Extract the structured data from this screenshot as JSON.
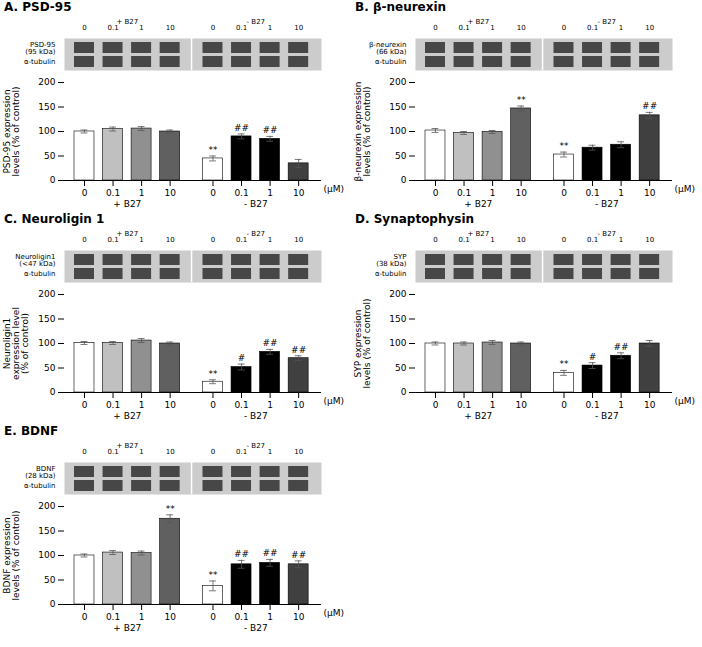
{
  "chart_data": [
    {
      "type": "bar",
      "title": "A. PSD-95",
      "y_label": "PSD-95 expression\nlevels (% of control)",
      "x_label": "(μM)",
      "categories": [
        "0",
        "0.1",
        "1",
        "10"
      ],
      "series": [
        {
          "name": "+ B27",
          "values": [
            100,
            105,
            106,
            100
          ],
          "errors": [
            3,
            4,
            4,
            3
          ],
          "colors": [
            "white",
            "#c0c0c0",
            "#909090",
            "#606060"
          ]
        },
        {
          "name": "- B27",
          "values": [
            45,
            90,
            85,
            35
          ],
          "errors": [
            5,
            5,
            5,
            8
          ],
          "colors": [
            "white",
            "black",
            "black",
            "#404040"
          ]
        }
      ],
      "annotations": [
        {
          "series": "- B27",
          "category": "0",
          "text": "**"
        },
        {
          "series": "- B27",
          "category": "0.1",
          "text": "##"
        },
        {
          "series": "- B27",
          "category": "1",
          "text": "##"
        }
      ],
      "blot_labels": [
        "PSD-95\n(95 kDa)",
        "α-tubulin"
      ],
      "ylim": [
        0,
        200
      ],
      "yticks": [
        0,
        50,
        100,
        150,
        200
      ]
    },
    {
      "type": "bar",
      "title": "B. β-neurexin",
      "y_label": "β-neurexin expression\nlevels (% of control)",
      "x_label": "(μM)",
      "categories": [
        "0",
        "0.1",
        "1",
        "10"
      ],
      "series": [
        {
          "name": "+ B27",
          "values": [
            102,
            97,
            99,
            147
          ],
          "errors": [
            4,
            3,
            3,
            5
          ],
          "colors": [
            "white",
            "#c0c0c0",
            "#909090",
            "#606060"
          ]
        },
        {
          "name": "- B27",
          "values": [
            53,
            67,
            73,
            133
          ],
          "errors": [
            5,
            5,
            6,
            6
          ],
          "colors": [
            "white",
            "black",
            "black",
            "#404040"
          ]
        }
      ],
      "annotations": [
        {
          "series": "+ B27",
          "category": "10",
          "text": "**"
        },
        {
          "series": "- B27",
          "category": "0",
          "text": "**"
        },
        {
          "series": "- B27",
          "category": "10",
          "text": "##"
        }
      ],
      "blot_labels": [
        "β-neurexin\n(66 kDa)",
        "α-tubulin"
      ],
      "ylim": [
        0,
        200
      ],
      "yticks": [
        0,
        50,
        100,
        150,
        200
      ]
    },
    {
      "type": "bar",
      "title": "C. Neuroligin 1",
      "y_label": "Neuroligin1\nexpression level\n(% of control)",
      "x_label": "(μM)",
      "categories": [
        "0",
        "0.1",
        "1",
        "10"
      ],
      "series": [
        {
          "name": "+ B27",
          "values": [
            101,
            101,
            106,
            100
          ],
          "errors": [
            3,
            3,
            4,
            3
          ],
          "colors": [
            "white",
            "#c0c0c0",
            "#909090",
            "#606060"
          ]
        },
        {
          "name": "- B27",
          "values": [
            22,
            52,
            83,
            70
          ],
          "errors": [
            4,
            6,
            5,
            5
          ],
          "colors": [
            "white",
            "black",
            "black",
            "#404040"
          ]
        }
      ],
      "annotations": [
        {
          "series": "- B27",
          "category": "0",
          "text": "**"
        },
        {
          "series": "- B27",
          "category": "0.1",
          "text": "#"
        },
        {
          "series": "- B27",
          "category": "1",
          "text": "##"
        },
        {
          "series": "- B27",
          "category": "10",
          "text": "##"
        }
      ],
      "blot_labels": [
        "Neuroligin1\n(<47 kDa)",
        "α-tubulin"
      ],
      "ylim": [
        0,
        200
      ],
      "yticks": [
        0,
        50,
        100,
        150,
        200
      ]
    },
    {
      "type": "bar",
      "title": "D. Synaptophysin",
      "y_label": "SYP expression\nlevels (% of control)",
      "x_label": "(μM)",
      "categories": [
        "0",
        "0.1",
        "1",
        "10"
      ],
      "series": [
        {
          "name": "+ B27",
          "values": [
            100,
            100,
            102,
            100
          ],
          "errors": [
            3,
            3,
            4,
            3
          ],
          "colors": [
            "white",
            "#c0c0c0",
            "#909090",
            "#606060"
          ]
        },
        {
          "name": "- B27",
          "values": [
            40,
            55,
            75,
            100
          ],
          "errors": [
            5,
            6,
            6,
            6
          ],
          "colors": [
            "white",
            "black",
            "black",
            "#404040"
          ]
        }
      ],
      "annotations": [
        {
          "series": "- B27",
          "category": "0",
          "text": "**"
        },
        {
          "series": "- B27",
          "category": "0.1",
          "text": "#"
        },
        {
          "series": "- B27",
          "category": "1",
          "text": "##"
        }
      ],
      "blot_labels": [
        "SYP\n(38 kDa)",
        "α-tubulin"
      ],
      "ylim": [
        0,
        200
      ],
      "yticks": [
        0,
        50,
        100,
        150,
        200
      ]
    },
    {
      "type": "bar",
      "title": "E. BDNF",
      "y_label": "BDNF expression\nlevels (% of control)",
      "x_label": "(μM)",
      "categories": [
        "0",
        "0.1",
        "1",
        "10"
      ],
      "series": [
        {
          "name": "+ B27",
          "values": [
            100,
            106,
            105,
            175
          ],
          "errors": [
            3,
            4,
            4,
            8
          ],
          "colors": [
            "white",
            "#c0c0c0",
            "#909090",
            "#606060"
          ]
        },
        {
          "name": "- B27",
          "values": [
            38,
            82,
            85,
            82
          ],
          "errors": [
            10,
            8,
            7,
            7
          ],
          "colors": [
            "white",
            "black",
            "black",
            "#404040"
          ]
        }
      ],
      "annotations": [
        {
          "series": "+ B27",
          "category": "10",
          "text": "**"
        },
        {
          "series": "- B27",
          "category": "0",
          "text": "**"
        },
        {
          "series": "- B27",
          "category": "0.1",
          "text": "##"
        },
        {
          "series": "- B27",
          "category": "1",
          "text": "##"
        },
        {
          "series": "- B27",
          "category": "10",
          "text": "##"
        }
      ],
      "blot_labels": [
        "BDNF\n(28 kDa)",
        "α-tubulin"
      ],
      "ylim": [
        0,
        200
      ],
      "yticks": [
        0,
        50,
        100,
        150,
        200
      ]
    }
  ]
}
